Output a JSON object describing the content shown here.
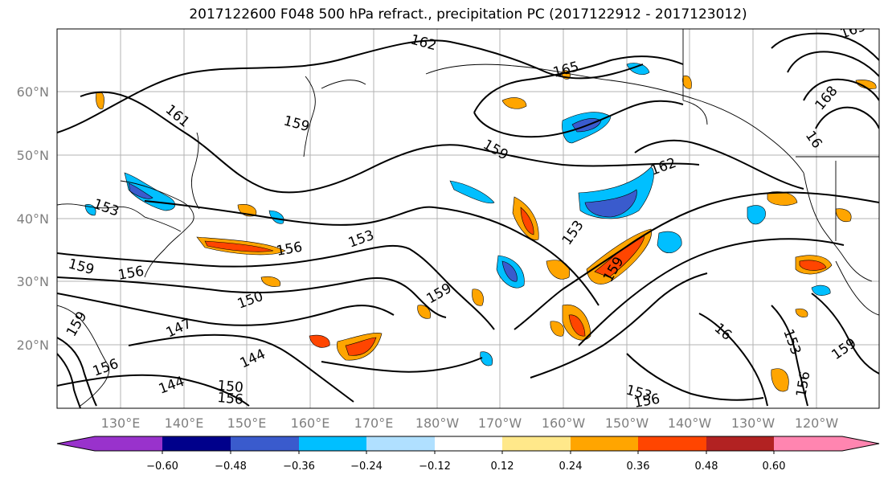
{
  "title": "2017122600 F048 500 hPa refract., precipitation PC (2017122912 - 2017123012)",
  "lat_labels": [
    "60°N",
    "50°N",
    "40°N",
    "30°N",
    "20°N"
  ],
  "lon_labels": [
    "130°E",
    "140°E",
    "150°E",
    "160°E",
    "170°E",
    "180°W",
    "170°W",
    "160°W",
    "150°W",
    "140°W",
    "130°W",
    "120°W"
  ],
  "contour_labels": [
    "162",
    "165",
    "165",
    "168",
    "16",
    "161",
    "159",
    "159",
    "162",
    "153",
    "156",
    "153",
    "150",
    "147",
    "144",
    "159",
    "156",
    "153",
    "159",
    "144",
    "159",
    "159",
    "153",
    "153",
    "156",
    "156",
    "159",
    "150",
    "156",
    "156",
    "16"
  ],
  "colorbar": {
    "ticks": [
      "−0.60",
      "−0.48",
      "−0.36",
      "−0.24",
      "−0.12",
      "0.12",
      "0.24",
      "0.36",
      "0.48",
      "0.60"
    ],
    "colors": [
      "#9932cc",
      "#00008b",
      "#3a5bcd",
      "#00bfff",
      "#b0e0ff",
      "#ffffff",
      "#ffe88a",
      "#ffa500",
      "#ff4500",
      "#b22222",
      "#ff85b0"
    ]
  }
}
